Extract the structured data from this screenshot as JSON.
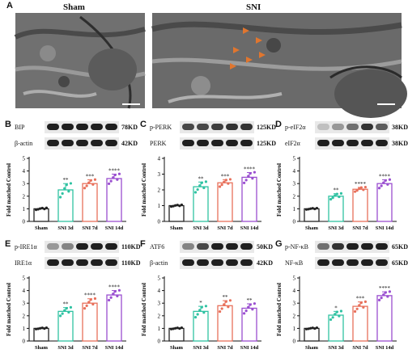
{
  "panels": {
    "A": {
      "letter": "A",
      "sham": "Sham",
      "sni": "SNI"
    },
    "B": {
      "letter": "B",
      "p1": "BIP",
      "kd1": "78KD",
      "p2": "β-actin",
      "kd2": "42KD"
    },
    "C": {
      "letter": "C",
      "p1": "p-PERK",
      "kd1": "125KD",
      "p2": "PERK",
      "kd2": "125KD"
    },
    "D": {
      "letter": "D",
      "p1": "p-eIF2α",
      "kd1": "38KD",
      "p2": "eIF2α",
      "kd2": "38KD"
    },
    "E": {
      "letter": "E",
      "p1": "p-IRE1α",
      "kd1": "110KD",
      "p2": "IRE1α",
      "kd2": "110KD"
    },
    "F": {
      "letter": "F",
      "p1": "ATF6",
      "kd1": "50KD",
      "p2": "β-actin",
      "kd2": "42KD"
    },
    "G": {
      "letter": "G",
      "p1": "p-NF-κB",
      "kd1": "65KD",
      "p2": "NF-κB",
      "kd2": "65KD"
    }
  },
  "colors": {
    "sham": "#222222",
    "sni3d": "#2fc2a2",
    "sni7d": "#e8705b",
    "sni14d": "#9a4fd0"
  },
  "chart_data": [
    {
      "panel": "B",
      "type": "bar",
      "ylabel": "Fold matched Control",
      "categories": [
        "Sham",
        "SNI 3d",
        "SNI 7d",
        "SNI 14d"
      ],
      "values": [
        1.0,
        2.5,
        3.0,
        3.4
      ],
      "errors": [
        0.05,
        0.5,
        0.3,
        0.35
      ],
      "sig": [
        "",
        "**",
        "***",
        "****"
      ],
      "ylim": [
        0,
        5
      ],
      "yticks": [
        0,
        1,
        2,
        3,
        4,
        5
      ]
    },
    {
      "panel": "C",
      "type": "bar",
      "ylabel": "Fold matched Control",
      "categories": [
        "Sham",
        "SNI 3d",
        "SNI 7d",
        "SNI 14d"
      ],
      "values": [
        1.0,
        2.2,
        2.45,
        2.8
      ],
      "errors": [
        0.03,
        0.3,
        0.2,
        0.3
      ],
      "sig": [
        "",
        "**",
        "***",
        "****"
      ],
      "ylim": [
        0,
        4
      ],
      "yticks": [
        0,
        1,
        2,
        3,
        4
      ]
    },
    {
      "panel": "D",
      "type": "bar",
      "ylabel": "Fold matched Control",
      "categories": [
        "Sham",
        "SNI 3d",
        "SNI 7d",
        "SNI 14d"
      ],
      "values": [
        1.0,
        2.0,
        2.55,
        3.0
      ],
      "errors": [
        0.03,
        0.2,
        0.15,
        0.3
      ],
      "sig": [
        "",
        "**",
        "****",
        "****"
      ],
      "ylim": [
        0,
        5
      ],
      "yticks": [
        0,
        1,
        2,
        3,
        4,
        5
      ]
    },
    {
      "panel": "E",
      "type": "bar",
      "ylabel": "Fold matched Control",
      "categories": [
        "Sham",
        "SNI 3d",
        "SNI 7d",
        "SNI 14d"
      ],
      "values": [
        1.0,
        2.35,
        3.0,
        3.65
      ],
      "errors": [
        0.03,
        0.3,
        0.35,
        0.35
      ],
      "sig": [
        "",
        "**",
        "****",
        "****"
      ],
      "ylim": [
        0,
        5
      ],
      "yticks": [
        0,
        1,
        2,
        3,
        4,
        5
      ]
    },
    {
      "panel": "F",
      "type": "bar",
      "ylabel": "Fold matched Control",
      "categories": [
        "Sham",
        "SNI 3d",
        "SNI 7d",
        "SNI 14d"
      ],
      "values": [
        1.0,
        2.35,
        2.8,
        2.6
      ],
      "errors": [
        0.03,
        0.4,
        0.4,
        0.35
      ],
      "sig": [
        "",
        "*",
        "**",
        "**"
      ],
      "ylim": [
        0,
        5
      ],
      "yticks": [
        0,
        1,
        2,
        3,
        4,
        5
      ]
    },
    {
      "panel": "G",
      "type": "bar",
      "ylabel": "Fold matched Control",
      "categories": [
        "Sham",
        "SNI 3d",
        "SNI 7d",
        "SNI 14d"
      ],
      "values": [
        1.0,
        2.05,
        2.75,
        3.6
      ],
      "errors": [
        0.03,
        0.3,
        0.35,
        0.3
      ],
      "sig": [
        "",
        "*",
        "***",
        "****"
      ],
      "ylim": [
        0,
        5
      ],
      "yticks": [
        0,
        1,
        2,
        3,
        4,
        5
      ]
    }
  ]
}
